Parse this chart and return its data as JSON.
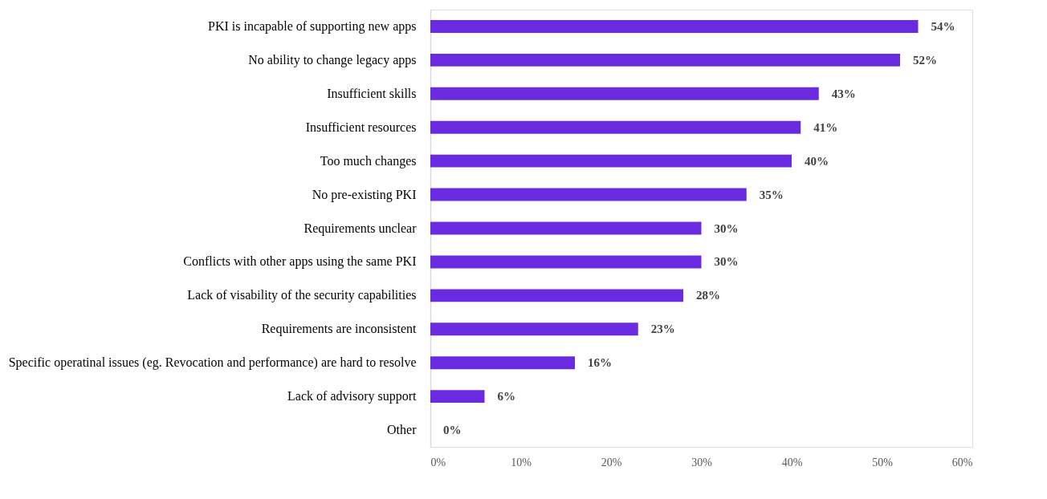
{
  "chart_data": {
    "type": "bar",
    "orientation": "horizontal",
    "categories": [
      "PKI is incapable of supporting new apps",
      "No ability to change legacy apps",
      "Insufficient skills",
      "Insufficient resources",
      "Too much changes",
      "No pre-existing PKI",
      "Requirements unclear",
      "Conflicts with other apps using the same PKI",
      "Lack of visability of the security capabilities",
      "Requirements are inconsistent",
      "Specific operatinal issues (eg. Revocation and performance) are hard to resolve",
      "Lack of advisory support",
      "Other"
    ],
    "values": [
      54,
      52,
      43,
      41,
      40,
      35,
      30,
      30,
      28,
      23,
      16,
      6,
      0
    ],
    "value_labels": [
      "54%",
      "52%",
      "43%",
      "41%",
      "40%",
      "35%",
      "30%",
      "30%",
      "28%",
      "23%",
      "16%",
      "6%",
      "0%"
    ],
    "color": "#6a2be0",
    "xlim": [
      0,
      60
    ],
    "xticks": [
      {
        "value": 0,
        "label": "0%"
      },
      {
        "value": 10,
        "label": "10%"
      },
      {
        "value": 20,
        "label": "20%"
      },
      {
        "value": 30,
        "label": "30%"
      },
      {
        "value": 40,
        "label": "40%"
      },
      {
        "value": 50,
        "label": "50%"
      },
      {
        "value": 60,
        "label": "60%"
      }
    ],
    "grid": false
  }
}
